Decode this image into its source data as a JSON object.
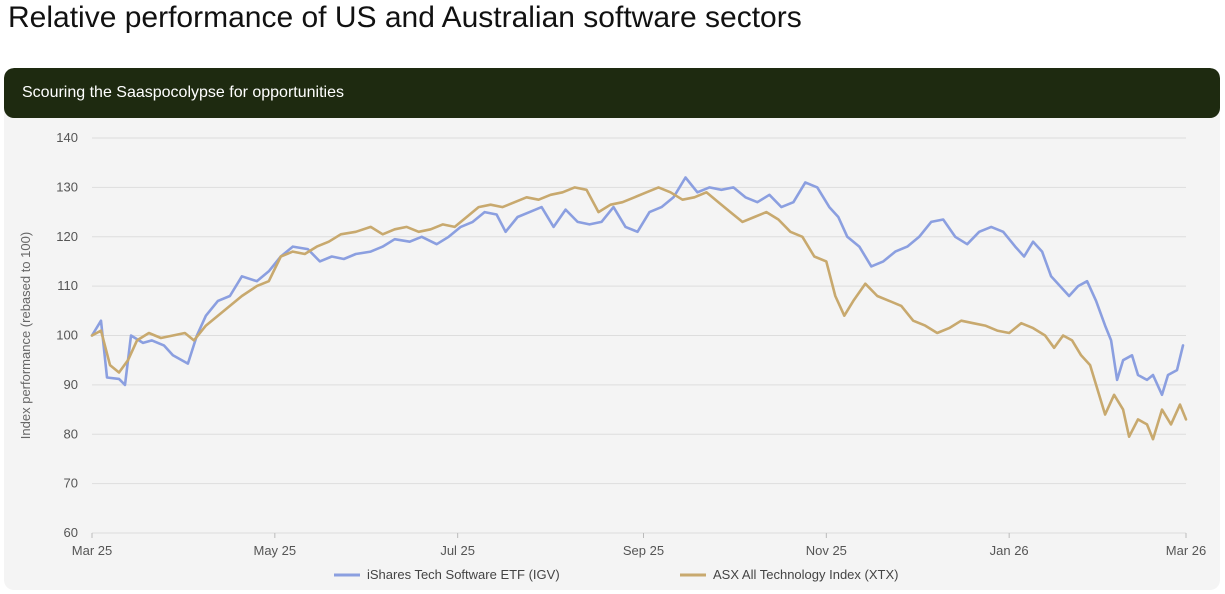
{
  "page": {
    "title": "Relative performance of US and Australian software sectors"
  },
  "card": {
    "subtitle": "Scouring the Saaspocolypse for opportunities"
  },
  "chart_data": {
    "type": "line",
    "title": "Relative performance of US and Australian software sectors",
    "subtitle": "Scouring the Saaspocolypse for opportunities",
    "xlabel": "",
    "ylabel": "Index performance (rebased to 100)",
    "ylim": [
      60,
      140
    ],
    "yticks": [
      60,
      70,
      80,
      90,
      100,
      110,
      120,
      130,
      140
    ],
    "xlim": [
      "2025-03-01",
      "2026-03-01"
    ],
    "xticks": [
      {
        "date": "2025-03-01",
        "label": "Mar 25"
      },
      {
        "date": "2025-05-01",
        "label": "May 25"
      },
      {
        "date": "2025-07-01",
        "label": "Jul 25"
      },
      {
        "date": "2025-09-01",
        "label": "Sep 25"
      },
      {
        "date": "2025-11-01",
        "label": "Nov 25"
      },
      {
        "date": "2026-01-01",
        "label": "Jan 26"
      },
      {
        "date": "2026-03-01",
        "label": "Mar 26"
      }
    ],
    "grid": true,
    "legend_position": "bottom",
    "series": [
      {
        "name": "iShares Tech Software ETF (IGV)",
        "color": "#8b9fe0",
        "points": [
          [
            "2025-03-01",
            100
          ],
          [
            "2025-03-04",
            103
          ],
          [
            "2025-03-06",
            91.5
          ],
          [
            "2025-03-10",
            91.2
          ],
          [
            "2025-03-12",
            90
          ],
          [
            "2025-03-14",
            100
          ],
          [
            "2025-03-18",
            98.5
          ],
          [
            "2025-03-21",
            99
          ],
          [
            "2025-03-25",
            98
          ],
          [
            "2025-03-28",
            96
          ],
          [
            "2025-04-02",
            94.3
          ],
          [
            "2025-04-05",
            100
          ],
          [
            "2025-04-08",
            104
          ],
          [
            "2025-04-12",
            107
          ],
          [
            "2025-04-16",
            108
          ],
          [
            "2025-04-20",
            112
          ],
          [
            "2025-04-25",
            111
          ],
          [
            "2025-04-29",
            113
          ],
          [
            "2025-05-03",
            116
          ],
          [
            "2025-05-07",
            118
          ],
          [
            "2025-05-12",
            117.5
          ],
          [
            "2025-05-16",
            115
          ],
          [
            "2025-05-20",
            116
          ],
          [
            "2025-05-24",
            115.5
          ],
          [
            "2025-05-28",
            116.5
          ],
          [
            "2025-06-02",
            117
          ],
          [
            "2025-06-06",
            118
          ],
          [
            "2025-06-10",
            119.5
          ],
          [
            "2025-06-15",
            119
          ],
          [
            "2025-06-19",
            120
          ],
          [
            "2025-06-24",
            118.5
          ],
          [
            "2025-06-28",
            120
          ],
          [
            "2025-07-02",
            122
          ],
          [
            "2025-07-06",
            123
          ],
          [
            "2025-07-10",
            125
          ],
          [
            "2025-07-14",
            124.5
          ],
          [
            "2025-07-17",
            121
          ],
          [
            "2025-07-21",
            124
          ],
          [
            "2025-07-25",
            125
          ],
          [
            "2025-07-29",
            126
          ],
          [
            "2025-08-02",
            122
          ],
          [
            "2025-08-06",
            125.5
          ],
          [
            "2025-08-10",
            123
          ],
          [
            "2025-08-14",
            122.5
          ],
          [
            "2025-08-18",
            123
          ],
          [
            "2025-08-22",
            126
          ],
          [
            "2025-08-26",
            122
          ],
          [
            "2025-08-30",
            121
          ],
          [
            "2025-09-03",
            125
          ],
          [
            "2025-09-07",
            126
          ],
          [
            "2025-09-11",
            128
          ],
          [
            "2025-09-15",
            132
          ],
          [
            "2025-09-19",
            129
          ],
          [
            "2025-09-23",
            130
          ],
          [
            "2025-09-27",
            129.5
          ],
          [
            "2025-10-01",
            130
          ],
          [
            "2025-10-05",
            128
          ],
          [
            "2025-10-09",
            127
          ],
          [
            "2025-10-13",
            128.5
          ],
          [
            "2025-10-17",
            126
          ],
          [
            "2025-10-21",
            127
          ],
          [
            "2025-10-25",
            131
          ],
          [
            "2025-10-29",
            130
          ],
          [
            "2025-11-02",
            126
          ],
          [
            "2025-11-05",
            124
          ],
          [
            "2025-11-08",
            120
          ],
          [
            "2025-11-12",
            118
          ],
          [
            "2025-11-16",
            114
          ],
          [
            "2025-11-20",
            115
          ],
          [
            "2025-11-24",
            117
          ],
          [
            "2025-11-28",
            118
          ],
          [
            "2025-12-02",
            120
          ],
          [
            "2025-12-06",
            123
          ],
          [
            "2025-12-10",
            123.5
          ],
          [
            "2025-12-14",
            120
          ],
          [
            "2025-12-18",
            118.5
          ],
          [
            "2025-12-22",
            121
          ],
          [
            "2025-12-26",
            122
          ],
          [
            "2025-12-30",
            121
          ],
          [
            "2026-01-03",
            118
          ],
          [
            "2026-01-06",
            116
          ],
          [
            "2026-01-09",
            119
          ],
          [
            "2026-01-12",
            117
          ],
          [
            "2026-01-15",
            112
          ],
          [
            "2026-01-18",
            110
          ],
          [
            "2026-01-21",
            108
          ],
          [
            "2026-01-24",
            110
          ],
          [
            "2026-01-27",
            111
          ],
          [
            "2026-01-30",
            107
          ],
          [
            "2026-02-02",
            102
          ],
          [
            "2026-02-04",
            99
          ],
          [
            "2026-02-06",
            91
          ],
          [
            "2026-02-08",
            95
          ],
          [
            "2026-02-11",
            96
          ],
          [
            "2026-02-13",
            92
          ],
          [
            "2026-02-16",
            91
          ],
          [
            "2026-02-18",
            92
          ],
          [
            "2026-02-21",
            88
          ],
          [
            "2026-02-23",
            92
          ],
          [
            "2026-02-26",
            93
          ],
          [
            "2026-02-28",
            98
          ]
        ]
      },
      {
        "name": "ASX All Technology Index (XTX)",
        "color": "#c8a96e",
        "points": [
          [
            "2025-03-01",
            100
          ],
          [
            "2025-03-04",
            101
          ],
          [
            "2025-03-07",
            94
          ],
          [
            "2025-03-10",
            92.5
          ],
          [
            "2025-03-13",
            95
          ],
          [
            "2025-03-16",
            99
          ],
          [
            "2025-03-20",
            100.5
          ],
          [
            "2025-03-24",
            99.5
          ],
          [
            "2025-03-28",
            100
          ],
          [
            "2025-04-01",
            100.5
          ],
          [
            "2025-04-04",
            99
          ],
          [
            "2025-04-08",
            102
          ],
          [
            "2025-04-12",
            104
          ],
          [
            "2025-04-16",
            106
          ],
          [
            "2025-04-20",
            108
          ],
          [
            "2025-04-25",
            110
          ],
          [
            "2025-04-29",
            111
          ],
          [
            "2025-05-03",
            116
          ],
          [
            "2025-05-07",
            117
          ],
          [
            "2025-05-11",
            116.5
          ],
          [
            "2025-05-15",
            118
          ],
          [
            "2025-05-19",
            119
          ],
          [
            "2025-05-23",
            120.5
          ],
          [
            "2025-05-28",
            121
          ],
          [
            "2025-06-02",
            122
          ],
          [
            "2025-06-06",
            120.5
          ],
          [
            "2025-06-10",
            121.5
          ],
          [
            "2025-06-14",
            122
          ],
          [
            "2025-06-18",
            121
          ],
          [
            "2025-06-22",
            121.5
          ],
          [
            "2025-06-26",
            122.5
          ],
          [
            "2025-06-30",
            122
          ],
          [
            "2025-07-04",
            124
          ],
          [
            "2025-07-08",
            126
          ],
          [
            "2025-07-12",
            126.5
          ],
          [
            "2025-07-16",
            126
          ],
          [
            "2025-07-20",
            127
          ],
          [
            "2025-07-24",
            128
          ],
          [
            "2025-07-28",
            127.5
          ],
          [
            "2025-08-01",
            128.5
          ],
          [
            "2025-08-05",
            129
          ],
          [
            "2025-08-09",
            130
          ],
          [
            "2025-08-13",
            129.5
          ],
          [
            "2025-08-17",
            125
          ],
          [
            "2025-08-21",
            126.5
          ],
          [
            "2025-08-25",
            127
          ],
          [
            "2025-08-29",
            128
          ],
          [
            "2025-09-02",
            129
          ],
          [
            "2025-09-06",
            130
          ],
          [
            "2025-09-10",
            129
          ],
          [
            "2025-09-14",
            127.5
          ],
          [
            "2025-09-18",
            128
          ],
          [
            "2025-09-22",
            129
          ],
          [
            "2025-09-26",
            127
          ],
          [
            "2025-09-30",
            125
          ],
          [
            "2025-10-04",
            123
          ],
          [
            "2025-10-08",
            124
          ],
          [
            "2025-10-12",
            125
          ],
          [
            "2025-10-16",
            123.5
          ],
          [
            "2025-10-20",
            121
          ],
          [
            "2025-10-24",
            120
          ],
          [
            "2025-10-28",
            116
          ],
          [
            "2025-11-01",
            115
          ],
          [
            "2025-11-04",
            108
          ],
          [
            "2025-11-07",
            104
          ],
          [
            "2025-11-10",
            107
          ],
          [
            "2025-11-14",
            110.5
          ],
          [
            "2025-11-18",
            108
          ],
          [
            "2025-11-22",
            107
          ],
          [
            "2025-11-26",
            106
          ],
          [
            "2025-11-30",
            103
          ],
          [
            "2025-12-04",
            102
          ],
          [
            "2025-12-08",
            100.5
          ],
          [
            "2025-12-12",
            101.5
          ],
          [
            "2025-12-16",
            103
          ],
          [
            "2025-12-20",
            102.5
          ],
          [
            "2025-12-24",
            102
          ],
          [
            "2025-12-28",
            101
          ],
          [
            "2026-01-01",
            100.5
          ],
          [
            "2026-01-05",
            102.5
          ],
          [
            "2026-01-09",
            101.5
          ],
          [
            "2026-01-13",
            100
          ],
          [
            "2026-01-16",
            97.5
          ],
          [
            "2026-01-19",
            100
          ],
          [
            "2026-01-22",
            99
          ],
          [
            "2026-01-25",
            96
          ],
          [
            "2026-01-28",
            94
          ],
          [
            "2026-01-31",
            88
          ],
          [
            "2026-02-02",
            84
          ],
          [
            "2026-02-05",
            88
          ],
          [
            "2026-02-08",
            85
          ],
          [
            "2026-02-10",
            79.5
          ],
          [
            "2026-02-13",
            83
          ],
          [
            "2026-02-16",
            82
          ],
          [
            "2026-02-18",
            79
          ],
          [
            "2026-02-21",
            85
          ],
          [
            "2026-02-24",
            82
          ],
          [
            "2026-02-27",
            86
          ],
          [
            "2026-03-01",
            83
          ]
        ]
      }
    ]
  }
}
